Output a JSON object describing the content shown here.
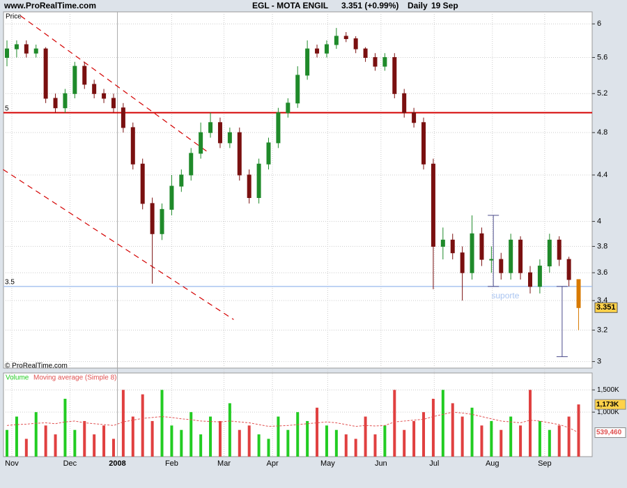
{
  "header": {
    "site": "www.ProRealTime.com",
    "symbol": "EGL - MOTA ENGIL",
    "quote": "3.351 (+0.99%)",
    "period": "Daily",
    "date": "19 Sep"
  },
  "chart_data": [
    {
      "type": "candlestick",
      "axis_label": "Price",
      "watermark": "© ProRealTime.com",
      "open": [
        5.6,
        5.7,
        5.75,
        5.65,
        5.7,
        5.15,
        5.05,
        5.2,
        5.5,
        5.3,
        5.2,
        5.15,
        5.05,
        4.85,
        4.5,
        4.15,
        3.9,
        4.1,
        4.3,
        4.4,
        4.6,
        4.8,
        4.9,
        4.7,
        4.8,
        4.4,
        4.2,
        4.5,
        4.7,
        5.0,
        5.1,
        5.4,
        5.7,
        5.65,
        5.75,
        5.85,
        5.82,
        5.7,
        5.6,
        5.5,
        5.6,
        5.2,
        5.0,
        4.9,
        4.5,
        3.8,
        3.85,
        3.75,
        3.6,
        3.9,
        3.7,
        3.7,
        3.6,
        3.85,
        3.6,
        3.5,
        3.65,
        3.85,
        3.7,
        3.55
      ],
      "high": [
        5.8,
        5.8,
        5.8,
        5.75,
        5.72,
        5.2,
        5.25,
        5.55,
        5.55,
        5.35,
        5.25,
        5.2,
        5.1,
        4.9,
        4.55,
        4.2,
        4.15,
        4.4,
        4.45,
        4.65,
        4.9,
        5.0,
        4.95,
        4.85,
        4.85,
        4.45,
        4.55,
        4.75,
        5.05,
        5.15,
        5.5,
        5.8,
        5.75,
        5.8,
        5.95,
        5.9,
        5.85,
        5.72,
        5.65,
        5.65,
        5.65,
        5.25,
        5.05,
        4.95,
        4.55,
        3.95,
        3.9,
        3.8,
        4.05,
        3.95,
        3.8,
        3.75,
        3.9,
        3.88,
        3.65,
        3.7,
        3.9,
        3.88,
        3.72,
        3.55
      ],
      "low": [
        5.5,
        5.6,
        5.6,
        5.6,
        5.1,
        5.0,
        5.0,
        5.15,
        5.25,
        5.15,
        5.1,
        5.0,
        4.8,
        4.45,
        4.1,
        3.52,
        3.85,
        4.05,
        4.25,
        4.35,
        4.55,
        4.75,
        4.65,
        4.65,
        4.35,
        4.15,
        4.15,
        4.45,
        4.65,
        4.95,
        5.05,
        5.35,
        5.6,
        5.6,
        5.7,
        5.78,
        5.65,
        5.55,
        5.45,
        5.45,
        5.15,
        4.95,
        4.85,
        4.45,
        3.48,
        3.7,
        3.7,
        3.4,
        3.55,
        3.65,
        3.6,
        3.55,
        3.55,
        3.55,
        3.45,
        3.45,
        3.6,
        3.65,
        3.5,
        3.2
      ],
      "close": [
        5.7,
        5.75,
        5.65,
        5.7,
        5.15,
        5.05,
        5.2,
        5.5,
        5.3,
        5.2,
        5.15,
        5.05,
        4.85,
        4.5,
        4.15,
        3.9,
        4.1,
        4.3,
        4.4,
        4.6,
        4.8,
        4.9,
        4.7,
        4.8,
        4.4,
        4.2,
        4.5,
        4.7,
        5.0,
        5.1,
        5.4,
        5.7,
        5.65,
        5.75,
        5.85,
        5.82,
        5.7,
        5.6,
        5.5,
        5.6,
        5.2,
        5.0,
        4.9,
        4.5,
        3.8,
        3.85,
        3.75,
        3.6,
        3.9,
        3.7,
        3.7,
        3.6,
        3.85,
        3.6,
        3.5,
        3.65,
        3.85,
        3.7,
        3.55,
        3.351
      ],
      "up_color": "#1f8a2a",
      "down_color": "#7a1010",
      "last_color": "#d87a00",
      "ylim": [
        2.96,
        6.15
      ],
      "log_scale": true,
      "grid": true,
      "yticks": [
        3,
        3.2,
        3.4,
        3.6,
        3.8,
        4,
        4.4,
        4.8,
        5.2,
        5.6,
        6
      ],
      "xlim": [
        -0.36,
        60.4
      ],
      "xticks": [
        {
          "value": 0.5,
          "label": "Nov"
        },
        {
          "value": 6.5,
          "label": "Dec"
        },
        {
          "value": 11.4,
          "label": "2008"
        },
        {
          "value": 17,
          "label": "Feb"
        },
        {
          "value": 22.4,
          "label": "Mar"
        },
        {
          "value": 27.4,
          "label": "Apr"
        },
        {
          "value": 33.1,
          "label": "May"
        },
        {
          "value": 38.6,
          "label": "Jun"
        },
        {
          "value": 44.1,
          "label": "Jul"
        },
        {
          "value": 50.1,
          "label": "Aug"
        },
        {
          "value": 55.5,
          "label": "Sep"
        }
      ],
      "hlines": [
        {
          "value": 5,
          "color": "#d40000"
        },
        {
          "value": 3.5,
          "color": "#a9c4f0"
        }
      ],
      "trendlines": [
        {
          "x": [
            1.4,
            20.9
          ],
          "y": [
            6.1,
            4.6
          ],
          "color": "#d40000"
        },
        {
          "x": [
            -0.4,
            23.4
          ],
          "y": [
            4.45,
            3.27
          ],
          "color": "#d40000"
        }
      ],
      "range_markers": [
        {
          "x": 50.2,
          "y": [
            4.05,
            3.5
          ],
          "color": "#4a4a8a"
        },
        {
          "x": 57.3,
          "y": [
            3.5,
            3.03
          ],
          "color": "#4a4a8a"
        }
      ],
      "annotations": [
        {
          "text": "suporte",
          "x": 50,
          "y": 3.43,
          "color": "#a9c4f0"
        }
      ]
    },
    {
      "type": "volume",
      "series": [
        {
          "name": "Volume",
          "color": "#22cc22",
          "values": [
            600000,
            900000,
            400000,
            1000000,
            700000,
            500000,
            1300000,
            600000,
            800000,
            500000,
            700000,
            400000,
            1500000,
            900000,
            1400000,
            800000,
            1500000,
            700000,
            600000,
            1000000,
            500000,
            900000,
            800000,
            1200000,
            600000,
            700000,
            500000,
            400000,
            900000,
            600000,
            1000000,
            800000,
            1100000,
            700000,
            600000,
            500000,
            400000,
            900000,
            500000,
            700000,
            1500000,
            600000,
            800000,
            1000000,
            1300000,
            1500000,
            1200000,
            900000,
            1100000,
            700000,
            800000,
            600000,
            900000,
            700000,
            1500000,
            800000,
            600000,
            700000,
            900000,
            1173000
          ],
          "value_labels": [
            null,
            null,
            null,
            null,
            null,
            null,
            null,
            null,
            null,
            null,
            null,
            null,
            null,
            null,
            null,
            null,
            null,
            null,
            null,
            null,
            null,
            null,
            null,
            null,
            null,
            null,
            null,
            null,
            null,
            null,
            null,
            null,
            null,
            null,
            null,
            null,
            null,
            null,
            null,
            null,
            null,
            null,
            null,
            null,
            null,
            null,
            null,
            null,
            null,
            null,
            null,
            null,
            null,
            null,
            null,
            null,
            null,
            null,
            null,
            "1,173K"
          ]
        },
        {
          "name": "Moving average (Simple 8)",
          "color": "#e05050",
          "values": [
            700000,
            720000,
            730000,
            750000,
            760000,
            740000,
            780000,
            800000,
            760000,
            740000,
            720000,
            700000,
            780000,
            820000,
            860000,
            880000,
            900000,
            880000,
            850000,
            830000,
            800000,
            790000,
            780000,
            800000,
            780000,
            760000,
            720000,
            680000,
            690000,
            700000,
            720000,
            740000,
            760000,
            780000,
            760000,
            720000,
            680000,
            700000,
            690000,
            700000,
            780000,
            800000,
            820000,
            840000,
            900000,
            950000,
            1000000,
            980000,
            950000,
            900000,
            850000,
            800000,
            780000,
            760000,
            820000,
            800000,
            760000,
            720000,
            650000,
            539460
          ],
          "value_labels": [
            null,
            null,
            null,
            null,
            null,
            null,
            null,
            null,
            null,
            null,
            null,
            null,
            null,
            null,
            null,
            null,
            null,
            null,
            null,
            null,
            null,
            null,
            null,
            null,
            null,
            null,
            null,
            null,
            null,
            null,
            null,
            null,
            null,
            null,
            null,
            null,
            null,
            null,
            null,
            null,
            null,
            null,
            null,
            null,
            null,
            null,
            null,
            null,
            null,
            null,
            null,
            null,
            null,
            null,
            null,
            null,
            null,
            null,
            null,
            "539,460"
          ]
        }
      ],
      "down_color": "#e04040",
      "ylim": [
        0,
        1880000
      ],
      "yticks": [
        {
          "value": 1000000,
          "label": "1,000K"
        },
        {
          "value": 1500000,
          "label": "1,500K"
        }
      ],
      "grid": true
    }
  ]
}
